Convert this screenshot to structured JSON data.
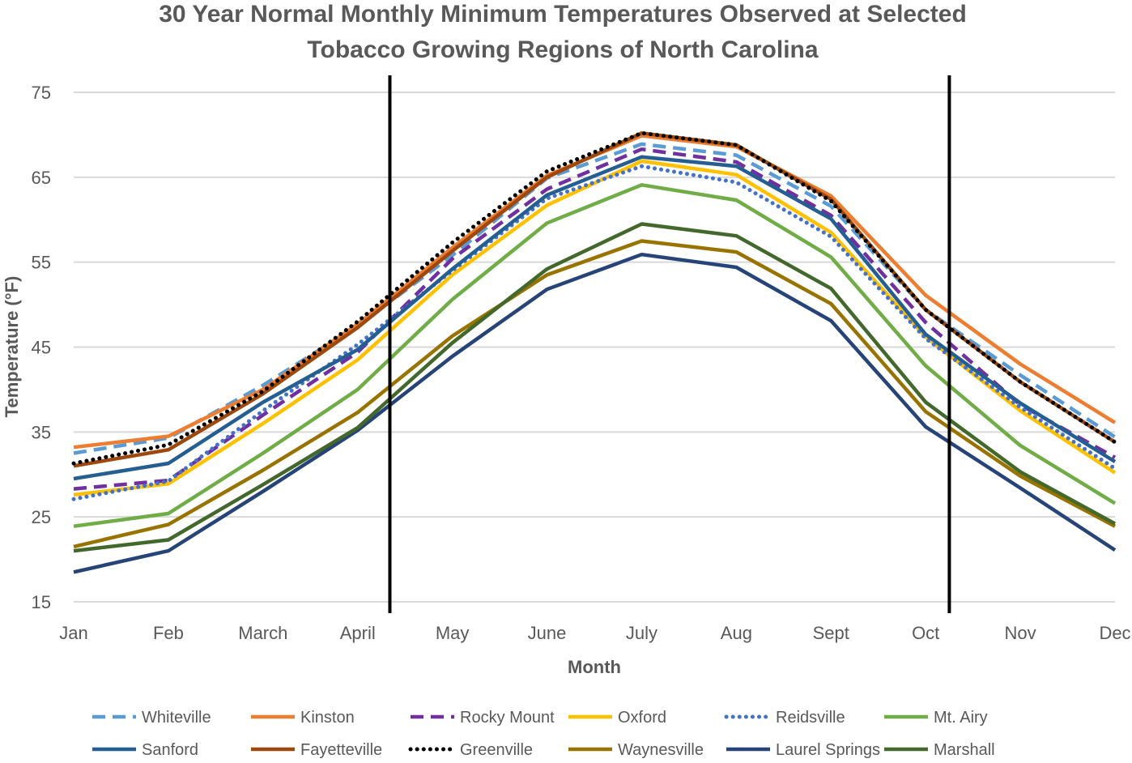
{
  "chart_data": {
    "type": "line",
    "title": [
      "30 Year Normal Monthly Minimum Temperatures Observed at Selected",
      "Tobacco Growing Regions of North Carolina"
    ],
    "xlabel": "Month",
    "ylabel": "Temperature (°F)",
    "ylim": [
      15,
      75
    ],
    "yticks": [
      75,
      65,
      55,
      45,
      35,
      25,
      15
    ],
    "grid": true,
    "legend_position": "bottom",
    "categories": [
      "Jan",
      "Feb",
      "March",
      "April",
      "May",
      "June",
      "July",
      "Aug",
      "Sept",
      "Oct",
      "Nov",
      "Dec"
    ],
    "vertical_markers": [
      3.34,
      9.25
    ],
    "series": [
      {
        "name": "Whiteville",
        "color": "#5B9BD5",
        "style": "dashed",
        "values": [
          32.5,
          34.3,
          40.5,
          47.5,
          55.8,
          64.9,
          68.9,
          67.6,
          61.6,
          49.4,
          41.7,
          34.4
        ]
      },
      {
        "name": "Kinston",
        "color": "#ED7D31",
        "style": "solid",
        "values": [
          33.2,
          34.5,
          40.0,
          47.7,
          56.7,
          65.2,
          69.9,
          68.6,
          62.8,
          51.1,
          43.0,
          36.1
        ]
      },
      {
        "name": "Rocky Mount",
        "color": "#7030A0",
        "style": "dashed",
        "values": [
          28.3,
          29.3,
          37.0,
          44.4,
          55.4,
          63.6,
          68.3,
          66.8,
          60.5,
          47.9,
          38.2,
          32.0
        ]
      },
      {
        "name": "Oxford",
        "color": "#FFC000",
        "style": "solid",
        "values": [
          27.6,
          28.9,
          36.0,
          43.5,
          53.5,
          61.7,
          66.9,
          65.3,
          58.5,
          46.2,
          37.5,
          30.2
        ]
      },
      {
        "name": "Reidsville",
        "color": "#4472C4",
        "style": "dotted",
        "values": [
          27.1,
          29.2,
          37.5,
          45.3,
          54.0,
          62.5,
          66.3,
          64.4,
          58.0,
          46.0,
          37.9,
          30.7
        ]
      },
      {
        "name": "Mt. Airy",
        "color": "#70AD47",
        "style": "solid",
        "values": [
          23.9,
          25.4,
          32.5,
          40.0,
          50.6,
          59.6,
          64.1,
          62.3,
          55.6,
          42.8,
          33.4,
          26.6
        ]
      },
      {
        "name": "Sanford",
        "color": "#255E91",
        "style": "solid",
        "values": [
          29.5,
          31.3,
          38.5,
          44.7,
          54.2,
          62.9,
          67.4,
          66.3,
          60.1,
          46.5,
          38.4,
          31.5
        ]
      },
      {
        "name": "Fayetteville",
        "color": "#9E480E",
        "style": "solid",
        "values": [
          31.0,
          32.9,
          39.5,
          47.3,
          56.3,
          65.0,
          70.2,
          68.8,
          62.4,
          49.4,
          40.9,
          33.8
        ]
      },
      {
        "name": "Greenville",
        "color": "#000000",
        "style": "dotted",
        "values": [
          31.3,
          33.5,
          39.8,
          48.0,
          57.3,
          65.7,
          70.2,
          68.8,
          62.2,
          49.4,
          40.9,
          33.8
        ]
      },
      {
        "name": "Waynesville",
        "color": "#997300",
        "style": "solid",
        "values": [
          21.5,
          24.1,
          30.5,
          37.3,
          46.3,
          53.5,
          57.5,
          56.2,
          50.1,
          37.4,
          29.8,
          23.9
        ]
      },
      {
        "name": "Laurel Springs",
        "color": "#264478",
        "style": "solid",
        "values": [
          18.5,
          21.0,
          28.0,
          35.2,
          43.9,
          51.8,
          55.9,
          54.4,
          48.1,
          35.6,
          28.4,
          21.1
        ]
      },
      {
        "name": "Marshall",
        "color": "#43682B",
        "style": "solid",
        "values": [
          21.0,
          22.3,
          28.8,
          35.5,
          45.5,
          54.2,
          59.5,
          58.1,
          51.9,
          38.5,
          30.3,
          24.2
        ]
      }
    ]
  }
}
